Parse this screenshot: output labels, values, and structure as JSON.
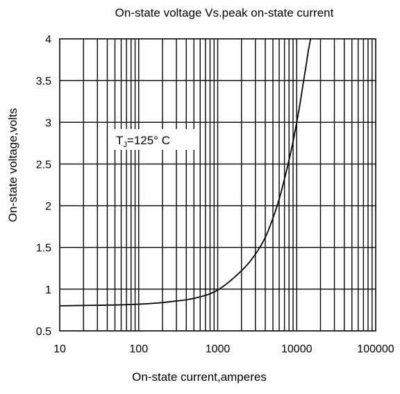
{
  "chart_data": {
    "type": "line",
    "title": "On-state voltage Vs.peak on-state current",
    "xlabel": "On-state current,amperes",
    "ylabel": "On-state voltage,volts",
    "xscale": "log",
    "xlim": [
      10,
      100000
    ],
    "ylim": [
      0.5,
      4
    ],
    "x_ticks": [
      "10",
      "100",
      "1000",
      "10000",
      "100000"
    ],
    "y_ticks": [
      "0.5",
      "1",
      "1.5",
      "2",
      "2.5",
      "3",
      "3.5",
      "4"
    ],
    "grid": true,
    "legend": "none",
    "annotation": {
      "main": "T",
      "sub": "J",
      "rest": "=125° C"
    },
    "line_color": "#000000",
    "series": [
      {
        "x": [
          10,
          20,
          50,
          100,
          200,
          500,
          1000,
          2000,
          3000,
          4000,
          5000,
          6000,
          7000,
          8000,
          9000,
          10000,
          11000,
          12000,
          13000,
          14000,
          15000
        ],
        "y": [
          0.8,
          0.805,
          0.81,
          0.82,
          0.84,
          0.89,
          0.99,
          1.22,
          1.42,
          1.62,
          1.85,
          2.08,
          2.32,
          2.55,
          2.77,
          3.0,
          3.22,
          3.45,
          3.65,
          3.85,
          4.0
        ]
      }
    ]
  }
}
